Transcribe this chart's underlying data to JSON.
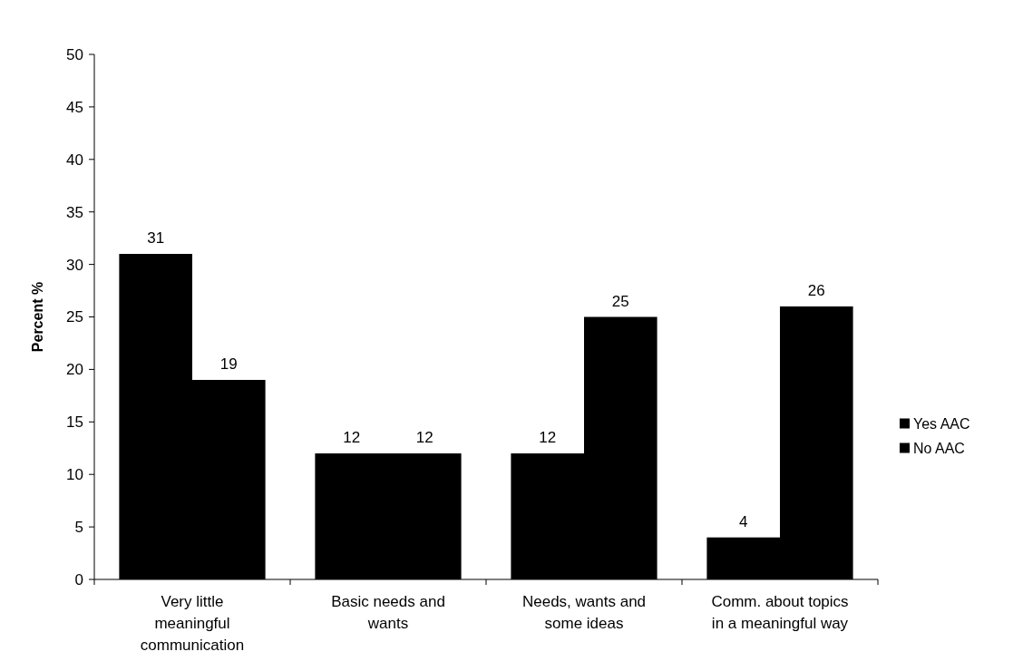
{
  "chart_data": {
    "type": "bar",
    "ylabel": "Percent %",
    "categories": [
      "Very little meaningful communication",
      "Basic needs and wants",
      "Needs, wants and some ideas",
      "Comm. about topics in a meaningful way"
    ],
    "series": [
      {
        "name": "Yes AAC",
        "color": "#000000",
        "values": [
          31,
          12,
          12,
          4
        ]
      },
      {
        "name": "No AAC",
        "color": "#000000",
        "values": [
          19,
          12,
          25,
          26
        ]
      }
    ],
    "ylim": [
      0,
      50
    ],
    "yticks": [
      0,
      5,
      10,
      15,
      20,
      25,
      30,
      35,
      40,
      45,
      50
    ],
    "data_labels": true,
    "legend": "right",
    "grid": false
  }
}
